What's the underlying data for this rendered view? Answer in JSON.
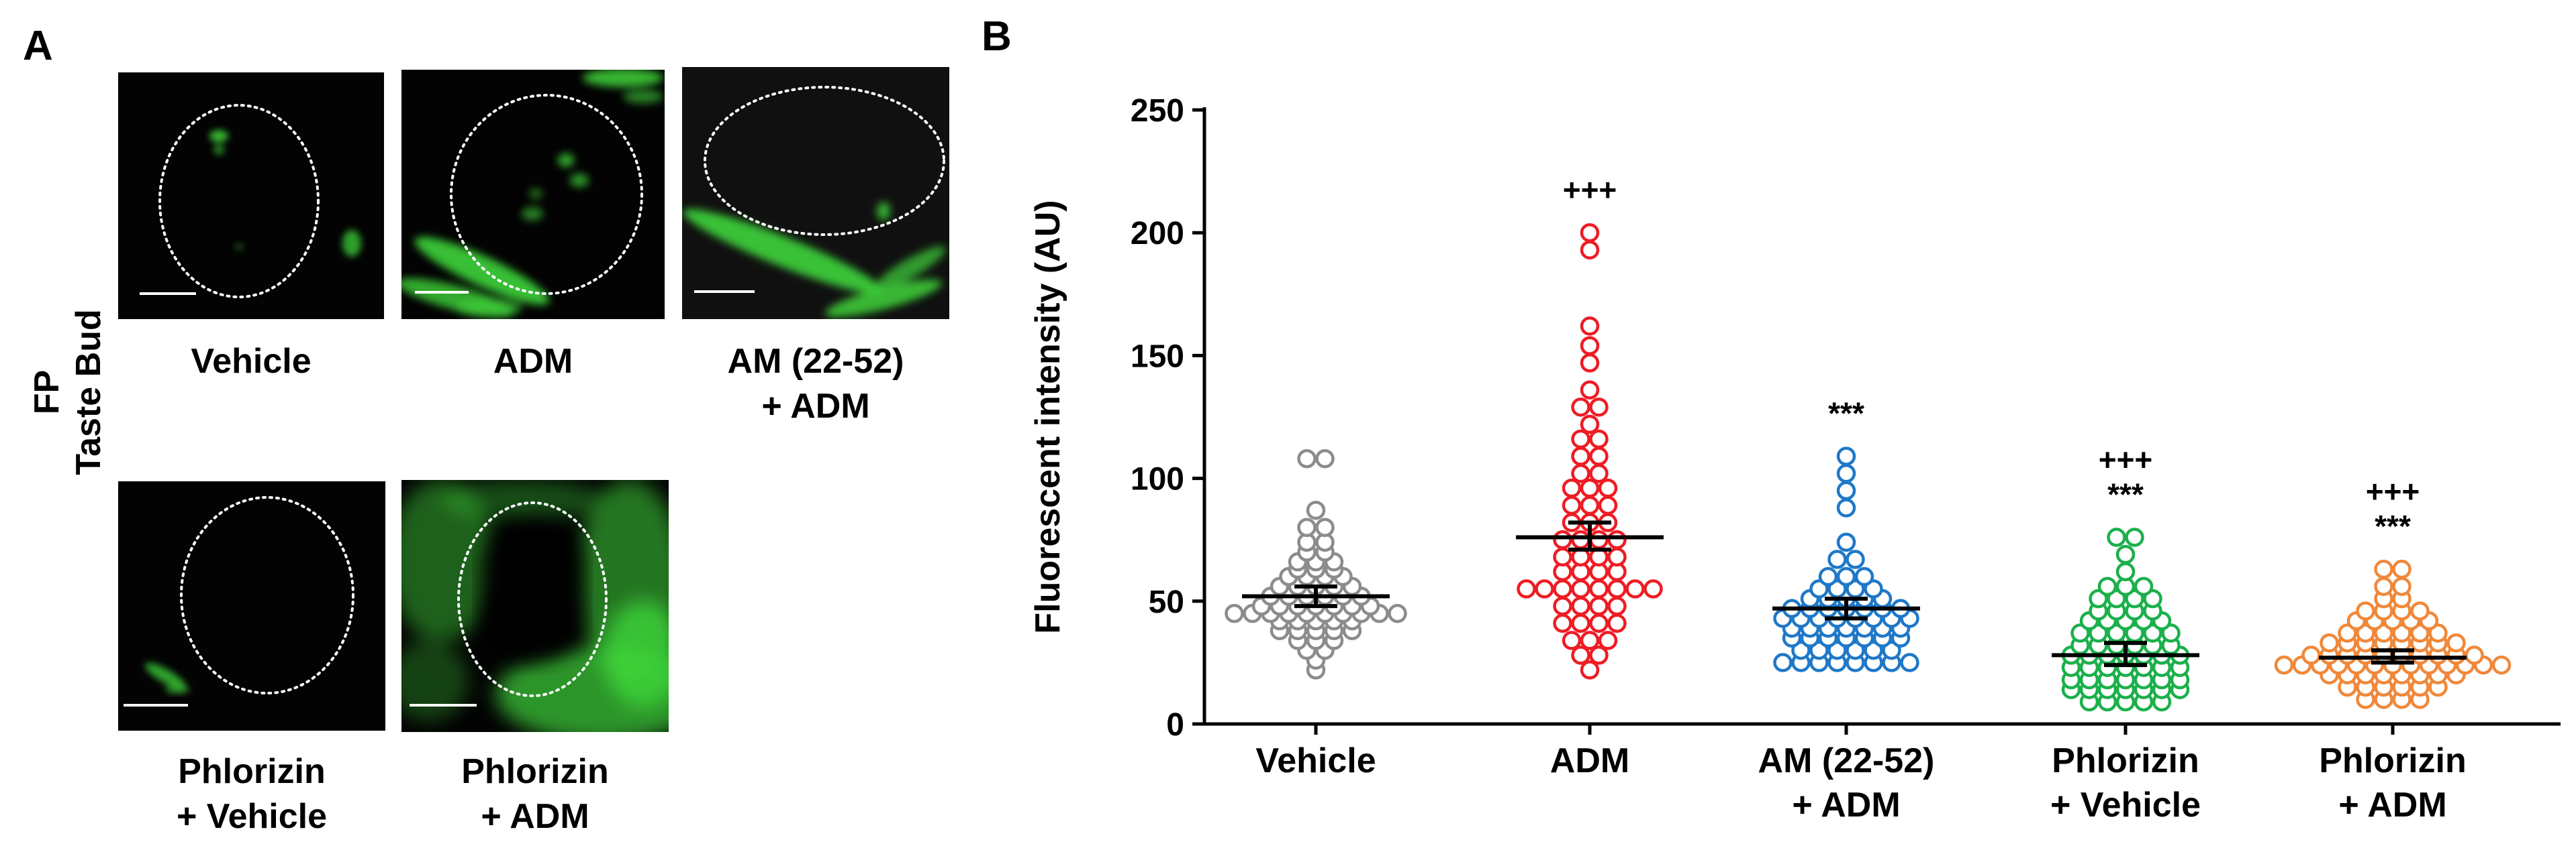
{
  "panel_a": {
    "letter": "A",
    "row_label_line1": "FP",
    "row_label_line2": "Taste Bud",
    "images": [
      {
        "caption_lines": [
          "Vehicle"
        ],
        "description": "fluorescence micrograph, green"
      },
      {
        "caption_lines": [
          "ADM"
        ],
        "description": "fluorescence micrograph, green"
      },
      {
        "caption_lines": [
          "AM (22-52)",
          "+ ADM"
        ],
        "description": "fluorescence micrograph, green"
      },
      {
        "caption_lines": [
          "Phlorizin",
          "+ Vehicle"
        ],
        "description": "fluorescence micrograph, green"
      },
      {
        "caption_lines": [
          "Phlorizin",
          "+ ADM"
        ],
        "description": "fluorescence micrograph, green"
      }
    ]
  },
  "panel_b": {
    "letter": "B"
  },
  "colors": {
    "vehicle": "#8c8c8c",
    "adm": "#ee1c24",
    "am_adm": "#1f78c8",
    "phlorizin_vehicle": "#1bb04b",
    "phlorizin_adm": "#f0883a",
    "fluorescence": "#3fd43a"
  },
  "chart_data": {
    "type": "scatter",
    "subtype": "dot plot with mean ± SEM",
    "ylabel": "Fluorescent intensity (AU)",
    "ylim": [
      0,
      250
    ],
    "yticks": [
      0,
      50,
      100,
      150,
      200,
      250
    ],
    "categories": [
      [
        "Vehicle"
      ],
      [
        "ADM"
      ],
      [
        "AM (22-52)",
        "+ ADM"
      ],
      [
        "Phlorizin",
        "+ Vehicle"
      ],
      [
        "Phlorizin",
        "+ ADM"
      ]
    ],
    "series": [
      {
        "name": "Vehicle",
        "color": "#8c8c8c",
        "mean": 52,
        "sem_low": 48,
        "sem_high": 56,
        "annotations": [],
        "values": [
          108,
          108,
          87,
          80,
          80,
          74,
          74,
          70,
          70,
          66,
          66,
          66,
          63,
          63,
          63,
          60,
          60,
          60,
          60,
          56,
          56,
          56,
          56,
          56,
          52,
          52,
          52,
          52,
          52,
          52,
          48,
          48,
          48,
          48,
          48,
          48,
          48,
          45,
          45,
          45,
          45,
          45,
          45,
          45,
          45,
          45,
          45,
          42,
          42,
          42,
          42,
          42,
          38,
          38,
          38,
          38,
          38,
          34,
          34,
          34,
          30,
          30,
          26,
          22
        ]
      },
      {
        "name": "ADM",
        "color": "#ee1c24",
        "mean": 76,
        "sem_low": 71,
        "sem_high": 82,
        "annotations": [
          "+++"
        ],
        "values": [
          200,
          193,
          162,
          154,
          147,
          136,
          129,
          129,
          122,
          116,
          116,
          109,
          109,
          102,
          102,
          96,
          96,
          96,
          89,
          89,
          89,
          82,
          82,
          82,
          75,
          75,
          75,
          75,
          68,
          68,
          68,
          68,
          62,
          62,
          62,
          62,
          55,
          55,
          55,
          55,
          55,
          55,
          55,
          55,
          48,
          48,
          48,
          48,
          41,
          41,
          41,
          41,
          34,
          34,
          34,
          28,
          28,
          22
        ]
      },
      {
        "name": "AM (22-52) + ADM",
        "color": "#1f78c8",
        "mean": 47,
        "sem_low": 43,
        "sem_high": 51,
        "annotations": [
          "***"
        ],
        "values": [
          109,
          102,
          95,
          88,
          74,
          67,
          67,
          60,
          60,
          60,
          55,
          55,
          55,
          55,
          51,
          51,
          51,
          51,
          51,
          47,
          47,
          47,
          47,
          47,
          47,
          47,
          43,
          43,
          43,
          43,
          43,
          43,
          43,
          43,
          39,
          39,
          39,
          39,
          39,
          39,
          39,
          35,
          35,
          35,
          35,
          35,
          35,
          35,
          30,
          30,
          30,
          30,
          30,
          30,
          25,
          25,
          25,
          25,
          25,
          25,
          25,
          25
        ]
      },
      {
        "name": "Phlorizin + Vehicle",
        "color": "#1bb04b",
        "mean": 28,
        "sem_low": 24,
        "sem_high": 33,
        "annotations": [
          "+++",
          "***"
        ],
        "values": [
          76,
          76,
          69,
          62,
          56,
          56,
          56,
          51,
          51,
          51,
          51,
          46,
          46,
          46,
          46,
          42,
          42,
          42,
          42,
          42,
          37,
          37,
          37,
          37,
          37,
          37,
          32,
          32,
          32,
          32,
          32,
          32,
          28,
          28,
          28,
          28,
          28,
          28,
          28,
          23,
          23,
          23,
          23,
          23,
          23,
          23,
          18,
          18,
          18,
          18,
          18,
          18,
          18,
          14,
          14,
          14,
          14,
          14,
          14,
          14,
          9,
          9,
          9,
          9,
          9
        ]
      },
      {
        "name": "Phlorizin + ADM",
        "color": "#f0883a",
        "mean": 27,
        "sem_low": 25,
        "sem_high": 30,
        "annotations": [
          "+++",
          "***"
        ],
        "values": [
          63,
          63,
          56,
          56,
          51,
          51,
          46,
          46,
          46,
          46,
          42,
          42,
          42,
          42,
          42,
          37,
          37,
          37,
          37,
          37,
          37,
          33,
          33,
          33,
          33,
          33,
          33,
          33,
          33,
          28,
          28,
          28,
          28,
          28,
          28,
          28,
          28,
          28,
          28,
          24,
          24,
          24,
          24,
          24,
          24,
          24,
          24,
          24,
          24,
          24,
          24,
          24,
          20,
          20,
          20,
          20,
          20,
          20,
          20,
          20,
          15,
          15,
          15,
          15,
          15,
          15,
          10,
          10,
          10,
          10
        ]
      }
    ]
  }
}
